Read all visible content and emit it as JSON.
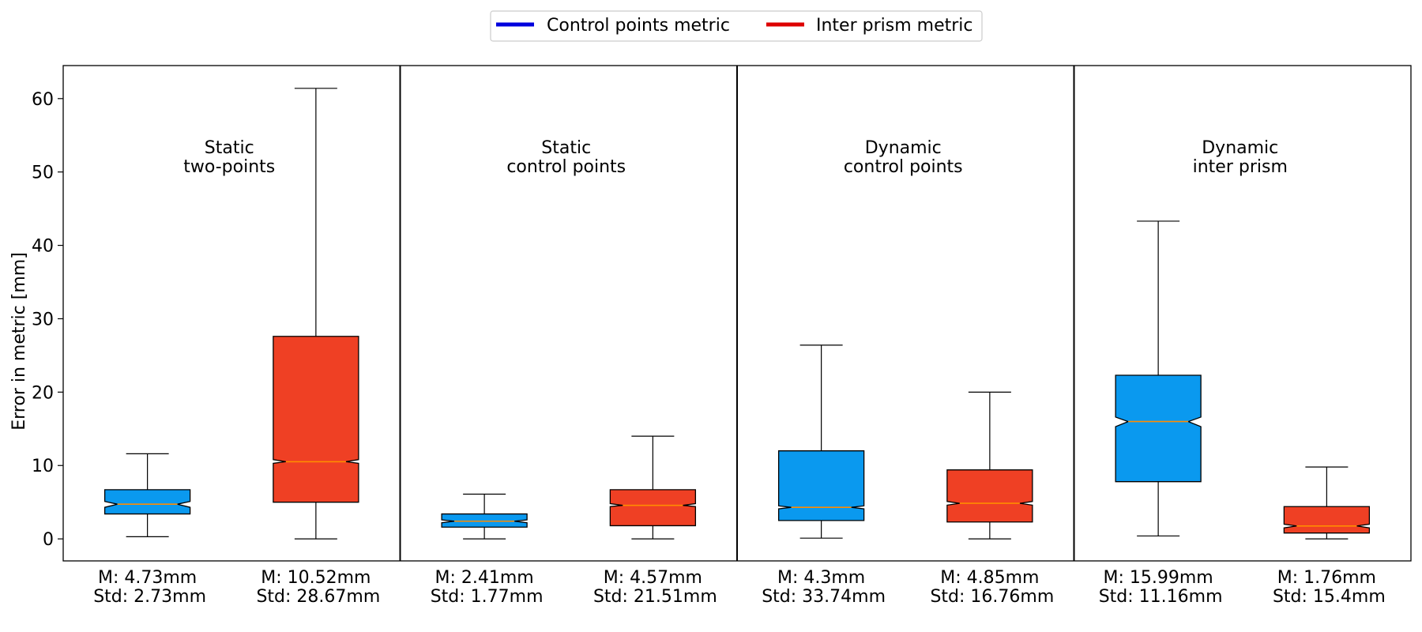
{
  "chart_data": {
    "type": "boxplot",
    "title": "",
    "xlabel": "",
    "ylabel": "Error in metric [mm]",
    "ylim": [
      -3,
      64.5
    ],
    "yticks": [
      0,
      10,
      20,
      30,
      40,
      50,
      60
    ],
    "grid": false,
    "legend_position": "top-center",
    "legend": [
      {
        "label": "Control points metric",
        "color": "#0000dd"
      },
      {
        "label": "Inter prism metric",
        "color": "#dd0000"
      }
    ],
    "colors": {
      "control": "#0a99ef",
      "inter": "#ef4024",
      "median": "#ff8c00"
    },
    "groups": [
      {
        "title_line1": "Static",
        "title_line2": "two-points",
        "boxes": [
          {
            "series": "control",
            "whisker_low": 0.3,
            "q1": 3.4,
            "median": 4.73,
            "q3": 6.7,
            "whisker_high": 11.6,
            "notch_low": 4.3,
            "notch_high": 5.1,
            "label_mean": "M: 4.73mm",
            "label_std": "Std: 2.73mm"
          },
          {
            "series": "inter",
            "whisker_low": 0.0,
            "q1": 5.0,
            "median": 10.52,
            "q3": 27.6,
            "whisker_high": 61.4,
            "notch_low": 10.3,
            "notch_high": 10.8,
            "label_mean": "M: 10.52mm",
            "label_std": "Std: 28.67mm"
          }
        ]
      },
      {
        "title_line1": "Static",
        "title_line2": "control points",
        "boxes": [
          {
            "series": "control",
            "whisker_low": 0.0,
            "q1": 1.6,
            "median": 2.41,
            "q3": 3.4,
            "whisker_high": 6.1,
            "notch_low": 2.2,
            "notch_high": 2.6,
            "label_mean": "M: 2.41mm",
            "label_std": "Std: 1.77mm"
          },
          {
            "series": "inter",
            "whisker_low": 0.0,
            "q1": 1.8,
            "median": 4.57,
            "q3": 6.7,
            "whisker_high": 14.0,
            "notch_low": 4.4,
            "notch_high": 4.8,
            "label_mean": "M: 4.57mm",
            "label_std": "Std: 21.51mm"
          }
        ]
      },
      {
        "title_line1": "Dynamic",
        "title_line2": "control points",
        "boxes": [
          {
            "series": "control",
            "whisker_low": 0.1,
            "q1": 2.5,
            "median": 4.3,
            "q3": 12.0,
            "whisker_high": 26.4,
            "notch_low": 4.1,
            "notch_high": 4.5,
            "label_mean": "M: 4.3mm",
            "label_std": "Std: 33.74mm"
          },
          {
            "series": "inter",
            "whisker_low": 0.0,
            "q1": 2.3,
            "median": 4.85,
            "q3": 9.4,
            "whisker_high": 20.0,
            "notch_low": 4.6,
            "notch_high": 5.1,
            "label_mean": "M: 4.85mm",
            "label_std": "Std: 16.76mm"
          }
        ]
      },
      {
        "title_line1": "Dynamic",
        "title_line2": "inter prism",
        "boxes": [
          {
            "series": "control",
            "whisker_low": 0.4,
            "q1": 7.8,
            "median": 15.99,
            "q3": 22.3,
            "whisker_high": 43.3,
            "notch_low": 15.3,
            "notch_high": 16.6,
            "label_mean": "M: 15.99mm",
            "label_std": "Std: 11.16mm"
          },
          {
            "series": "inter",
            "whisker_low": 0.0,
            "q1": 0.8,
            "median": 1.76,
            "q3": 4.4,
            "whisker_high": 9.8,
            "notch_low": 1.5,
            "notch_high": 2.0,
            "label_mean": "M: 1.76mm",
            "label_std": "Std: 15.4mm"
          }
        ]
      }
    ]
  }
}
